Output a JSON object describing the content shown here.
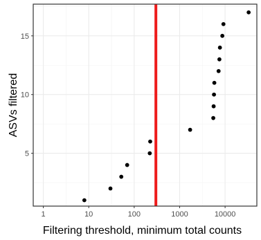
{
  "chart_data": {
    "type": "scatter",
    "title": "",
    "xlabel": "Filtering threshold, minimum total counts",
    "ylabel": "ASVs filtered",
    "x_scale": "log10",
    "xlim": [
      0.6,
      50000
    ],
    "ylim": [
      0.5,
      17.7
    ],
    "x_ticks": [
      1,
      10,
      100,
      1000,
      10000
    ],
    "x_tick_labels": [
      "1",
      "10",
      "100",
      "1000",
      "10000"
    ],
    "y_ticks": [
      5,
      10,
      15
    ],
    "y_tick_labels": [
      "5",
      "10",
      "15"
    ],
    "grid": true,
    "points": [
      {
        "x": 8,
        "y": 1
      },
      {
        "x": 30,
        "y": 2
      },
      {
        "x": 52,
        "y": 3
      },
      {
        "x": 70,
        "y": 4
      },
      {
        "x": 220,
        "y": 5
      },
      {
        "x": 225,
        "y": 6
      },
      {
        "x": 1700,
        "y": 7
      },
      {
        "x": 5500,
        "y": 8
      },
      {
        "x": 5600,
        "y": 9
      },
      {
        "x": 5700,
        "y": 10
      },
      {
        "x": 5800,
        "y": 11
      },
      {
        "x": 7200,
        "y": 12
      },
      {
        "x": 7500,
        "y": 13
      },
      {
        "x": 7700,
        "y": 14
      },
      {
        "x": 8700,
        "y": 15
      },
      {
        "x": 9200,
        "y": 16
      },
      {
        "x": 33000,
        "y": 17
      }
    ],
    "reference_line": {
      "orientation": "vertical",
      "x": 300,
      "color": "#ee1c1c"
    },
    "point_color": "#000000",
    "grid_major_color": "#ebebeb",
    "grid_minor_color": "#f5f5f5",
    "panel_border_color": "#333333"
  }
}
